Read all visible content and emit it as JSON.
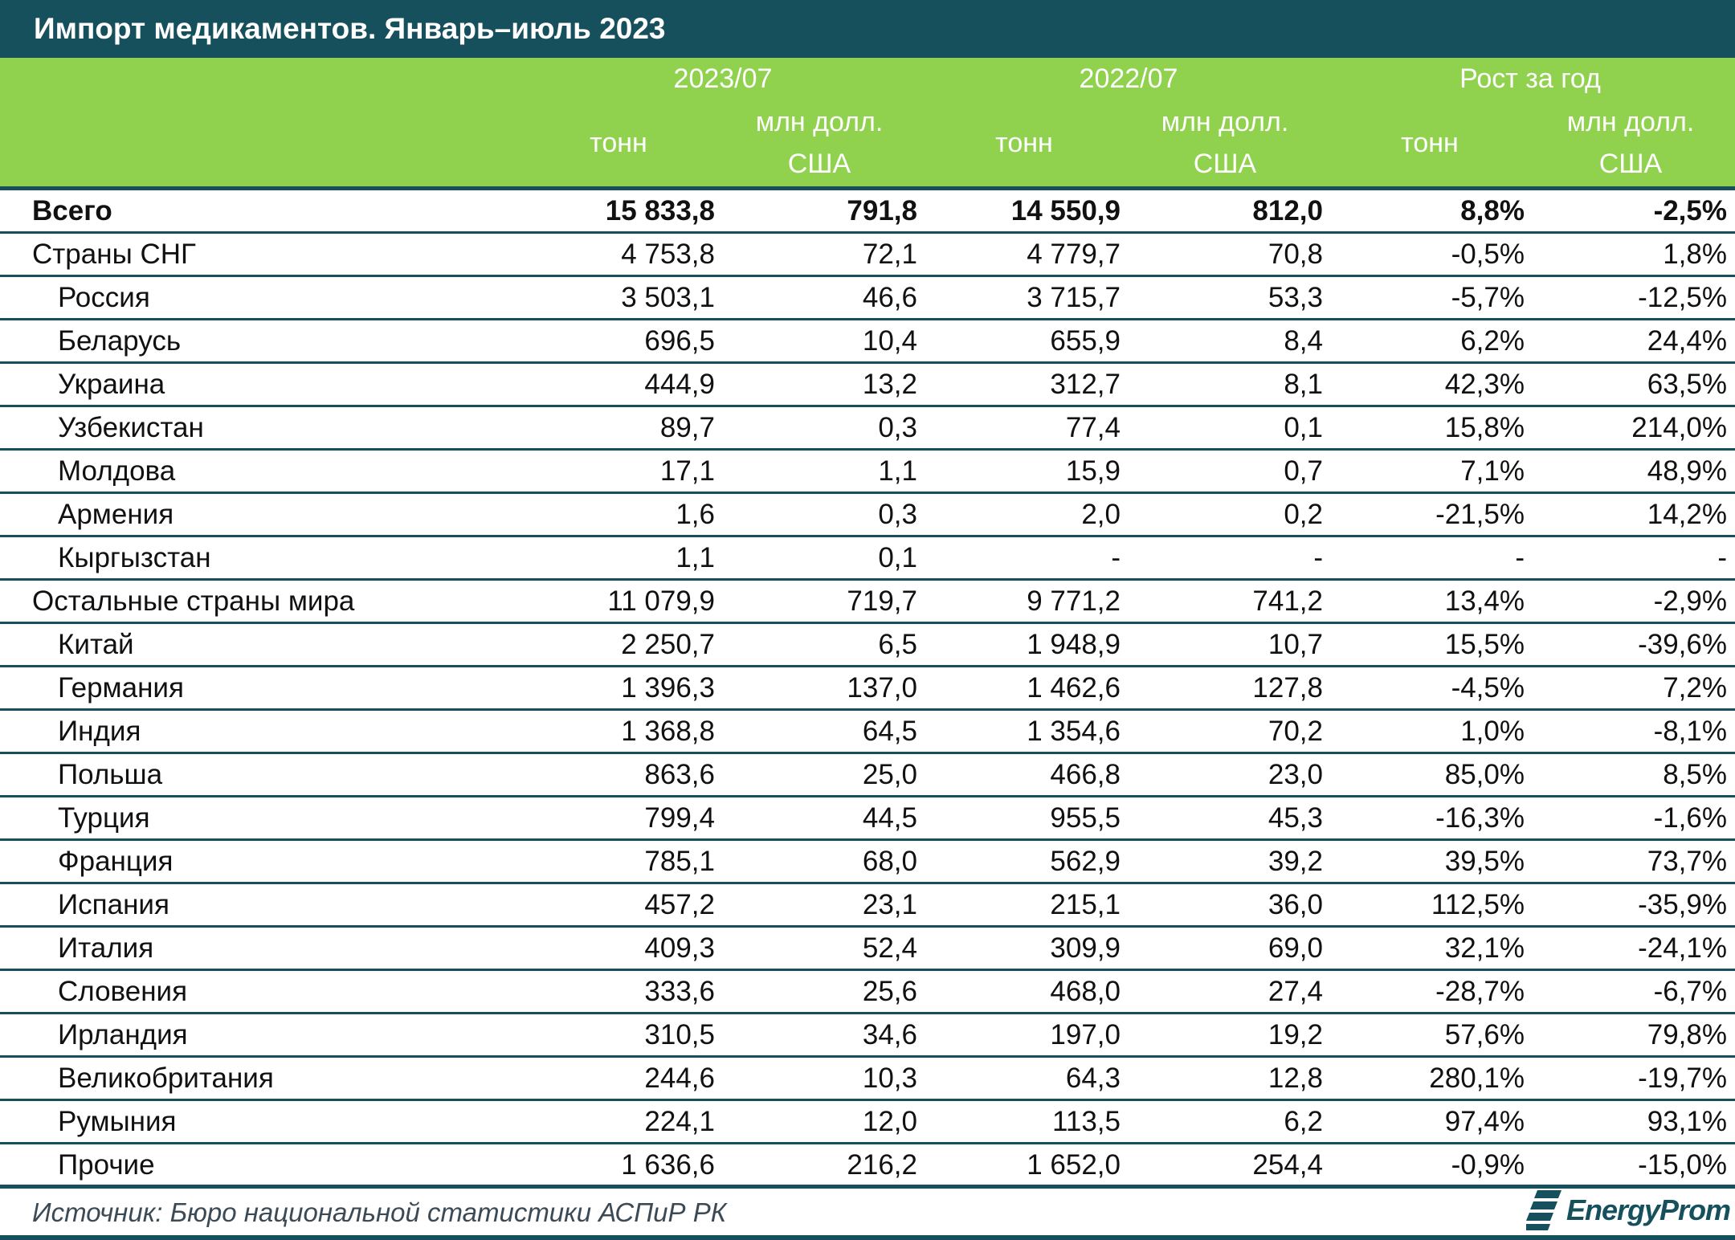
{
  "title": "Импорт медикаментов. Январь–июль 2023",
  "header": {
    "groups": [
      "2023/07",
      "2022/07",
      "Рост за год"
    ],
    "unit_tons": "тонн",
    "unit_usd_line1": "млн долл.",
    "unit_usd_line2": "США"
  },
  "rows": [
    {
      "name": "Всего",
      "level": 0,
      "bold": true,
      "values": [
        "15 833,8",
        "791,8",
        "14 550,9",
        "812,0",
        "8,8%",
        "-2,5%"
      ]
    },
    {
      "name": "Страны СНГ",
      "level": 0,
      "bold": false,
      "values": [
        "4 753,8",
        "72,1",
        "4 779,7",
        "70,8",
        "-0,5%",
        "1,8%"
      ]
    },
    {
      "name": "Россия",
      "level": 1,
      "bold": false,
      "values": [
        "3 503,1",
        "46,6",
        "3 715,7",
        "53,3",
        "-5,7%",
        "-12,5%"
      ]
    },
    {
      "name": "Беларусь",
      "level": 1,
      "bold": false,
      "values": [
        "696,5",
        "10,4",
        "655,9",
        "8,4",
        "6,2%",
        "24,4%"
      ]
    },
    {
      "name": "Украина",
      "level": 1,
      "bold": false,
      "values": [
        "444,9",
        "13,2",
        "312,7",
        "8,1",
        "42,3%",
        "63,5%"
      ]
    },
    {
      "name": "Узбекистан",
      "level": 1,
      "bold": false,
      "values": [
        "89,7",
        "0,3",
        "77,4",
        "0,1",
        "15,8%",
        "214,0%"
      ]
    },
    {
      "name": "Молдова",
      "level": 1,
      "bold": false,
      "values": [
        "17,1",
        "1,1",
        "15,9",
        "0,7",
        "7,1%",
        "48,9%"
      ]
    },
    {
      "name": "Армения",
      "level": 1,
      "bold": false,
      "values": [
        "1,6",
        "0,3",
        "2,0",
        "0,2",
        "-21,5%",
        "14,2%"
      ]
    },
    {
      "name": "Кыргызстан",
      "level": 1,
      "bold": false,
      "values": [
        "1,1",
        "0,1",
        "-",
        "-",
        "-",
        "-"
      ]
    },
    {
      "name": "Остальные страны мира",
      "level": 0,
      "bold": false,
      "values": [
        "11 079,9",
        "719,7",
        "9 771,2",
        "741,2",
        "13,4%",
        "-2,9%"
      ]
    },
    {
      "name": "Китай",
      "level": 1,
      "bold": false,
      "values": [
        "2 250,7",
        "6,5",
        "1 948,9",
        "10,7",
        "15,5%",
        "-39,6%"
      ]
    },
    {
      "name": "Германия",
      "level": 1,
      "bold": false,
      "values": [
        "1 396,3",
        "137,0",
        "1 462,6",
        "127,8",
        "-4,5%",
        "7,2%"
      ]
    },
    {
      "name": "Индия",
      "level": 1,
      "bold": false,
      "values": [
        "1 368,8",
        "64,5",
        "1 354,6",
        "70,2",
        "1,0%",
        "-8,1%"
      ]
    },
    {
      "name": "Польша",
      "level": 1,
      "bold": false,
      "values": [
        "863,6",
        "25,0",
        "466,8",
        "23,0",
        "85,0%",
        "8,5%"
      ]
    },
    {
      "name": "Турция",
      "level": 1,
      "bold": false,
      "values": [
        "799,4",
        "44,5",
        "955,5",
        "45,3",
        "-16,3%",
        "-1,6%"
      ]
    },
    {
      "name": "Франция",
      "level": 1,
      "bold": false,
      "values": [
        "785,1",
        "68,0",
        "562,9",
        "39,2",
        "39,5%",
        "73,7%"
      ]
    },
    {
      "name": "Испания",
      "level": 1,
      "bold": false,
      "values": [
        "457,2",
        "23,1",
        "215,1",
        "36,0",
        "112,5%",
        "-35,9%"
      ]
    },
    {
      "name": "Италия",
      "level": 1,
      "bold": false,
      "values": [
        "409,3",
        "52,4",
        "309,9",
        "69,0",
        "32,1%",
        "-24,1%"
      ]
    },
    {
      "name": "Словения",
      "level": 1,
      "bold": false,
      "values": [
        "333,6",
        "25,6",
        "468,0",
        "27,4",
        "-28,7%",
        "-6,7%"
      ]
    },
    {
      "name": "Ирландия",
      "level": 1,
      "bold": false,
      "values": [
        "310,5",
        "34,6",
        "197,0",
        "19,2",
        "57,6%",
        "79,8%"
      ]
    },
    {
      "name": "Великобритания",
      "level": 1,
      "bold": false,
      "values": [
        "244,6",
        "10,3",
        "64,3",
        "12,8",
        "280,1%",
        "-19,7%"
      ]
    },
    {
      "name": "Румыния",
      "level": 1,
      "bold": false,
      "values": [
        "224,1",
        "12,0",
        "113,5",
        "6,2",
        "97,4%",
        "93,1%"
      ]
    },
    {
      "name": "Прочие",
      "level": 1,
      "bold": false,
      "values": [
        "1 636,6",
        "216,2",
        "1 652,0",
        "254,4",
        "-0,9%",
        "-15,0%"
      ]
    }
  ],
  "footer": {
    "source": "Источник: Бюро национальной статистики АСПиР РК",
    "logo_text": "EnergyProm",
    "logo_icon": "energyprom-logo-icon"
  },
  "colors": {
    "title_bg": "#17505d",
    "header_bg": "#90d24e",
    "rule": "#17505d"
  }
}
